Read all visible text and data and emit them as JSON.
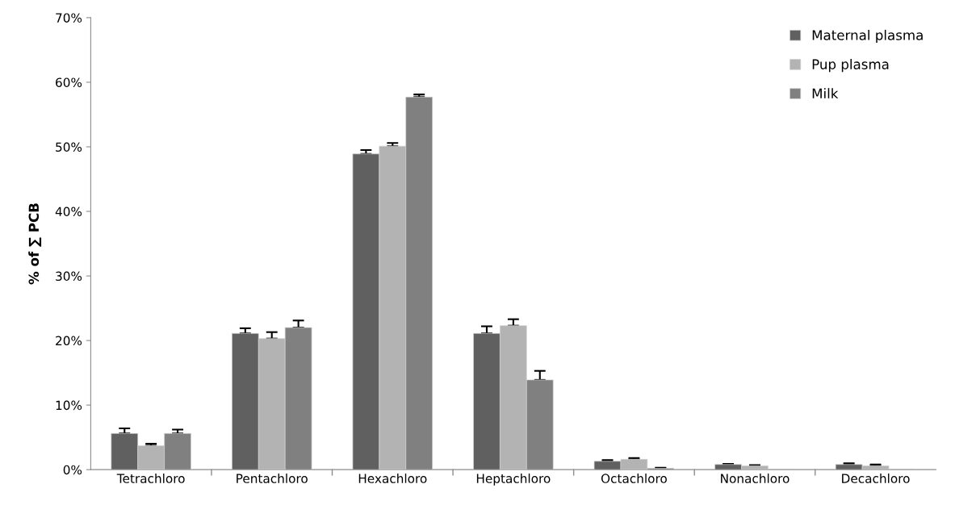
{
  "chart_data": {
    "type": "bar",
    "ylabel": "% of ∑ PCB",
    "categories": [
      "Tetrachloro",
      "Pentachloro",
      "Hexachloro",
      "Heptachloro",
      "Octachloro",
      "Nonachloro",
      "Decachloro"
    ],
    "series": [
      {
        "name": "Maternal plasma",
        "color": "#606060",
        "values": [
          5.6,
          21.1,
          48.9,
          21.1,
          1.3,
          0.8,
          0.8
        ],
        "errors": [
          [
            5.6,
            6.4
          ],
          [
            21.1,
            21.9
          ],
          [
            48.9,
            49.5
          ],
          [
            21.1,
            22.2
          ],
          [
            1.3,
            1.5
          ],
          [
            0.8,
            0.9
          ],
          [
            0.8,
            1.0
          ]
        ]
      },
      {
        "name": "Pup plasma",
        "color": "#b3b3b3",
        "values": [
          3.7,
          20.3,
          50.1,
          22.3,
          1.6,
          0.6,
          0.6
        ],
        "errors": [
          [
            3.7,
            4.0
          ],
          [
            20.3,
            21.3
          ],
          [
            50.1,
            50.6
          ],
          [
            22.3,
            23.3
          ],
          [
            1.6,
            1.8
          ],
          [
            0.6,
            0.7
          ],
          [
            0.6,
            0.8
          ]
        ]
      },
      {
        "name": "Milk",
        "color": "#808080",
        "values": [
          5.6,
          22.0,
          57.7,
          13.9,
          0.2,
          0.1,
          0.1
        ],
        "errors": [
          [
            5.6,
            6.2
          ],
          [
            22.0,
            23.1
          ],
          [
            57.7,
            58.1
          ],
          [
            13.9,
            15.3
          ],
          [
            0.2,
            0.3
          ],
          null,
          null
        ]
      }
    ],
    "ylim": [
      0,
      70
    ],
    "yticks": [
      {
        "value": 0,
        "label": "0%"
      },
      {
        "value": 10,
        "label": "10%"
      },
      {
        "value": 20,
        "label": "20%"
      },
      {
        "value": 30,
        "label": "30%"
      },
      {
        "value": 40,
        "label": "40%"
      },
      {
        "value": 50,
        "label": "50%"
      },
      {
        "value": 60,
        "label": "60%"
      },
      {
        "value": 70,
        "label": "70%"
      }
    ],
    "grid": false,
    "legend": "top right"
  }
}
